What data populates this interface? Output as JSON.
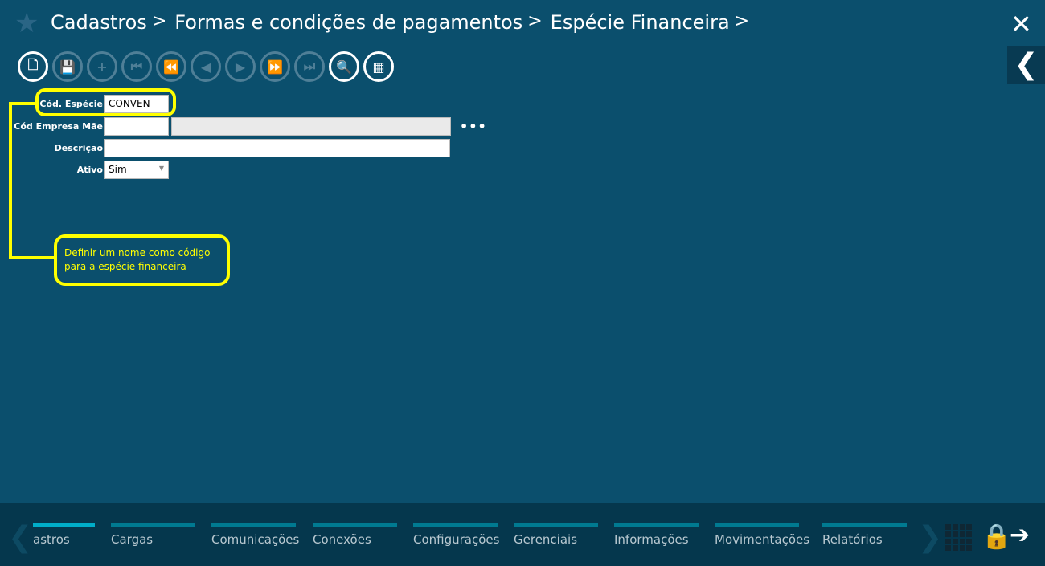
{
  "header": {
    "breadcrumbs": [
      "Cadastros",
      "Formas e condições de pagamentos",
      "Espécie Financeira"
    ],
    "separator": ">",
    "close_icon": "✕",
    "back_icon": "❮",
    "favorite_icon": "★"
  },
  "toolbar": [
    {
      "name": "new",
      "glyph": "🗋",
      "enabled": true
    },
    {
      "name": "save",
      "glyph": "💾",
      "enabled": false
    },
    {
      "name": "add",
      "glyph": "+",
      "enabled": false
    },
    {
      "name": "first",
      "glyph": "⏮",
      "enabled": false
    },
    {
      "name": "rewind",
      "glyph": "⏪",
      "enabled": false
    },
    {
      "name": "previous",
      "glyph": "◀",
      "enabled": false
    },
    {
      "name": "next",
      "glyph": "▶",
      "enabled": false
    },
    {
      "name": "fast-forward",
      "glyph": "⏩",
      "enabled": false
    },
    {
      "name": "last",
      "glyph": "⏭",
      "enabled": false
    },
    {
      "name": "search",
      "glyph": "🔍",
      "enabled": true
    },
    {
      "name": "grid",
      "glyph": "▦",
      "enabled": true
    }
  ],
  "form": {
    "cod_especie": {
      "label": "Cód. Espécie",
      "value": "CONVEN"
    },
    "cod_empresa_mae": {
      "label": "Cód Empresa Mãe",
      "value": "",
      "description": ""
    },
    "descricao": {
      "label": "Descrição",
      "value": ""
    },
    "ativo": {
      "label": "Ativo",
      "value": "Sim"
    },
    "more_icon": "•••"
  },
  "annotation": {
    "text": "Definir um nome como código para a espécie financeira",
    "color": "#ffff00"
  },
  "bottom_nav": {
    "tabs": [
      "astros",
      "Cargas",
      "Comunicações",
      "Conexões",
      "Configurações",
      "Gerenciais",
      "Informações",
      "Movimentações",
      "Relatórios"
    ],
    "active": 0,
    "lock_icon": "🔒",
    "logout_icon": "➔",
    "left_icon": "❮",
    "right_icon": "❯"
  },
  "colors": {
    "background": "#0b4f6d",
    "bottom": "#05374d",
    "accent": "#00adc9"
  }
}
